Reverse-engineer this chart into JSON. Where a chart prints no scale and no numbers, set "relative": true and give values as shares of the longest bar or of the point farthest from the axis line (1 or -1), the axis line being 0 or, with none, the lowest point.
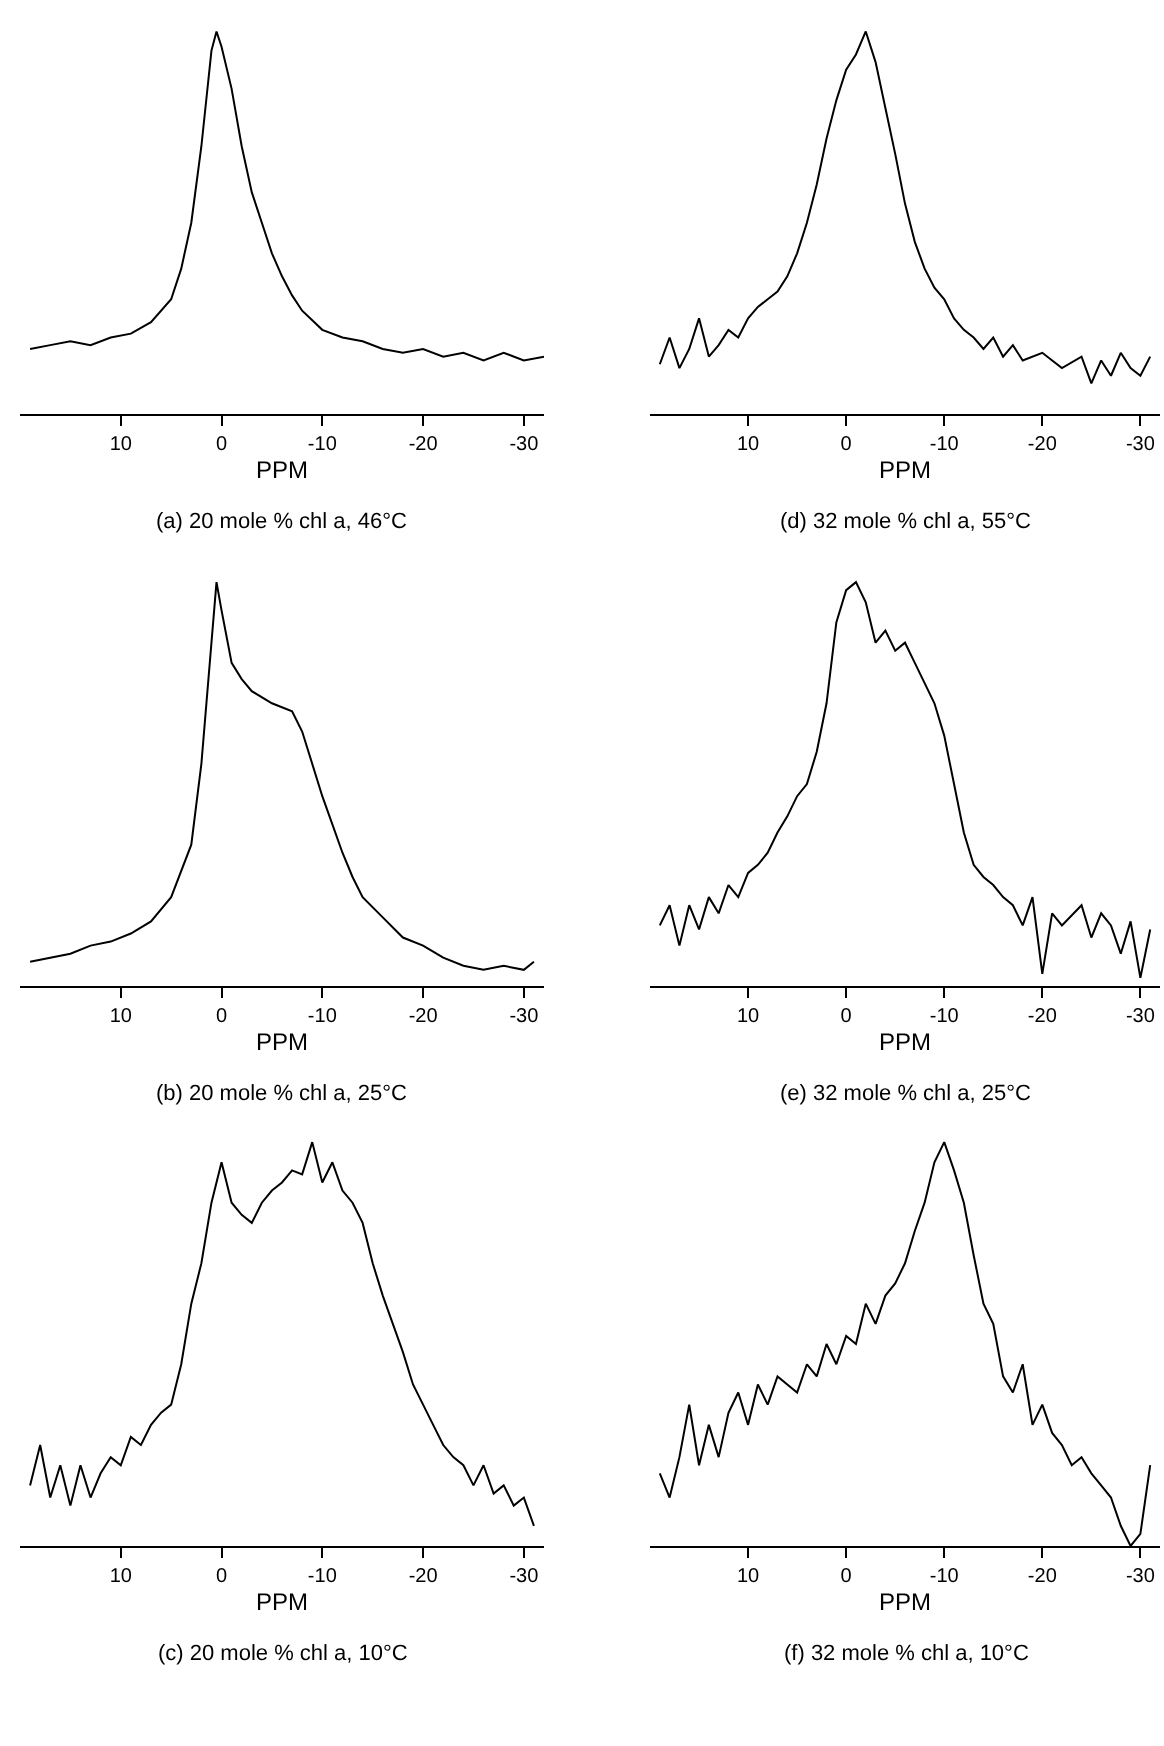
{
  "chart_data": [
    {
      "type": "line",
      "relative": true,
      "title": "(a) 20 mole % chl a, 46°C",
      "xlabel": "PPM",
      "xlim": [
        20,
        -32
      ],
      "xticks": [
        10,
        0,
        -10,
        -20,
        -30
      ],
      "x": [
        19,
        17,
        15,
        13,
        11,
        9,
        7,
        5,
        4,
        3,
        2,
        1,
        0.5,
        0,
        -1,
        -2,
        -3,
        -4,
        -5,
        -6,
        -7,
        -8,
        -10,
        -12,
        -14,
        -16,
        -18,
        -20,
        -22,
        -24,
        -26,
        -28,
        -30,
        -32
      ],
      "series": [
        {
          "color": "#000000",
          "values": [
            0.17,
            0.18,
            0.19,
            0.18,
            0.2,
            0.21,
            0.24,
            0.3,
            0.38,
            0.5,
            0.7,
            0.95,
            1.0,
            0.96,
            0.85,
            0.7,
            0.58,
            0.5,
            0.42,
            0.36,
            0.31,
            0.27,
            0.22,
            0.2,
            0.19,
            0.17,
            0.16,
            0.17,
            0.15,
            0.16,
            0.14,
            0.16,
            0.14,
            0.15
          ]
        }
      ]
    },
    {
      "type": "line",
      "relative": true,
      "title": "(d) 32 mole % chl a, 55°C",
      "xlabel": "PPM",
      "xlim": [
        20,
        -32
      ],
      "xticks": [
        10,
        0,
        -10,
        -20,
        -30
      ],
      "x": [
        19,
        18,
        17,
        16,
        15,
        14,
        13,
        12,
        11,
        10,
        9,
        8,
        7,
        6,
        5,
        4,
        3,
        2,
        1,
        0,
        -1,
        -2,
        -3,
        -4,
        -5,
        -6,
        -7,
        -8,
        -9,
        -10,
        -11,
        -12,
        -13,
        -14,
        -15,
        -16,
        -17,
        -18,
        -20,
        -22,
        -24,
        -25,
        -26,
        -27,
        -28,
        -29,
        -30,
        -31
      ],
      "series": [
        {
          "color": "#000000",
          "values": [
            0.13,
            0.2,
            0.12,
            0.17,
            0.25,
            0.15,
            0.18,
            0.22,
            0.2,
            0.25,
            0.28,
            0.3,
            0.32,
            0.36,
            0.42,
            0.5,
            0.6,
            0.72,
            0.82,
            0.9,
            0.94,
            1.0,
            0.92,
            0.8,
            0.68,
            0.55,
            0.45,
            0.38,
            0.33,
            0.3,
            0.25,
            0.22,
            0.2,
            0.17,
            0.2,
            0.15,
            0.18,
            0.14,
            0.16,
            0.12,
            0.15,
            0.08,
            0.14,
            0.1,
            0.16,
            0.12,
            0.1,
            0.15
          ]
        }
      ]
    },
    {
      "type": "line",
      "relative": true,
      "title": "(b) 20 mole % chl a, 25°C",
      "xlabel": "PPM",
      "xlim": [
        20,
        -32
      ],
      "xticks": [
        10,
        0,
        -10,
        -20,
        -30
      ],
      "x": [
        19,
        17,
        15,
        13,
        11,
        9,
        7,
        5,
        3,
        2,
        1,
        0.5,
        0,
        -1,
        -2,
        -3,
        -5,
        -7,
        -8,
        -9,
        -10,
        -11,
        -12,
        -13,
        -14,
        -16,
        -18,
        -20,
        -22,
        -24,
        -26,
        -28,
        -30,
        -31
      ],
      "series": [
        {
          "color": "#000000",
          "values": [
            0.06,
            0.07,
            0.08,
            0.1,
            0.11,
            0.13,
            0.16,
            0.22,
            0.35,
            0.55,
            0.85,
            1.0,
            0.93,
            0.8,
            0.76,
            0.73,
            0.7,
            0.68,
            0.63,
            0.55,
            0.47,
            0.4,
            0.33,
            0.27,
            0.22,
            0.17,
            0.12,
            0.1,
            0.07,
            0.05,
            0.04,
            0.05,
            0.04,
            0.06
          ]
        }
      ]
    },
    {
      "type": "line",
      "relative": true,
      "title": "(e) 32 mole % chl a, 25°C",
      "xlabel": "PPM",
      "xlim": [
        20,
        -32
      ],
      "xticks": [
        10,
        0,
        -10,
        -20,
        -30
      ],
      "x": [
        19,
        18,
        17,
        16,
        15,
        14,
        13,
        12,
        11,
        10,
        9,
        8,
        7,
        6,
        5,
        4,
        3,
        2,
        1,
        0,
        -1,
        -2,
        -3,
        -4,
        -5,
        -6,
        -7,
        -8,
        -9,
        -10,
        -11,
        -12,
        -13,
        -14,
        -15,
        -16,
        -17,
        -18,
        -19,
        -20,
        -21,
        -22,
        -24,
        -25,
        -26,
        -27,
        -28,
        -29,
        -30,
        -31
      ],
      "series": [
        {
          "color": "#000000",
          "values": [
            0.15,
            0.2,
            0.1,
            0.2,
            0.14,
            0.22,
            0.18,
            0.25,
            0.22,
            0.28,
            0.3,
            0.33,
            0.38,
            0.42,
            0.47,
            0.5,
            0.58,
            0.7,
            0.9,
            0.98,
            1.0,
            0.95,
            0.85,
            0.88,
            0.83,
            0.85,
            0.8,
            0.75,
            0.7,
            0.62,
            0.5,
            0.38,
            0.3,
            0.27,
            0.25,
            0.22,
            0.2,
            0.15,
            0.22,
            0.03,
            0.18,
            0.15,
            0.2,
            0.12,
            0.18,
            0.15,
            0.08,
            0.16,
            0.02,
            0.14
          ]
        }
      ]
    },
    {
      "type": "line",
      "relative": true,
      "title": "(c) 20 mole % chl a, 10°C",
      "xlabel": "PPM",
      "xlim": [
        20,
        -32
      ],
      "xticks": [
        10,
        0,
        -10,
        -20,
        -30
      ],
      "x": [
        19,
        18,
        17,
        16,
        15,
        14,
        13,
        12,
        11,
        10,
        9,
        8,
        7,
        6,
        5,
        4,
        3,
        2,
        1,
        0,
        -1,
        -2,
        -3,
        -4,
        -5,
        -6,
        -7,
        -8,
        -9,
        -10,
        -11,
        -12,
        -13,
        -14,
        -15,
        -16,
        -17,
        -18,
        -19,
        -20,
        -21,
        -22,
        -23,
        -24,
        -25,
        -26,
        -27,
        -28,
        -29,
        -30,
        -31
      ],
      "series": [
        {
          "color": "#000000",
          "values": [
            0.15,
            0.25,
            0.12,
            0.2,
            0.1,
            0.2,
            0.12,
            0.18,
            0.22,
            0.2,
            0.27,
            0.25,
            0.3,
            0.33,
            0.35,
            0.45,
            0.6,
            0.7,
            0.85,
            0.95,
            0.85,
            0.82,
            0.8,
            0.85,
            0.88,
            0.9,
            0.93,
            0.92,
            1.0,
            0.9,
            0.95,
            0.88,
            0.85,
            0.8,
            0.7,
            0.62,
            0.55,
            0.48,
            0.4,
            0.35,
            0.3,
            0.25,
            0.22,
            0.2,
            0.15,
            0.2,
            0.13,
            0.15,
            0.1,
            0.12,
            0.05
          ]
        }
      ]
    },
    {
      "type": "line",
      "relative": true,
      "title": "(f) 32 mole % chl a, 10°C",
      "xlabel": "PPM",
      "xlim": [
        20,
        -32
      ],
      "xticks": [
        10,
        0,
        -10,
        -20,
        -30
      ],
      "x": [
        19,
        18,
        17,
        16,
        15,
        14,
        13,
        12,
        11,
        10,
        9,
        8,
        7,
        6,
        5,
        4,
        3,
        2,
        1,
        0,
        -1,
        -2,
        -3,
        -4,
        -5,
        -6,
        -7,
        -8,
        -9,
        -10,
        -11,
        -12,
        -13,
        -14,
        -15,
        -16,
        -17,
        -18,
        -19,
        -20,
        -21,
        -22,
        -23,
        -24,
        -25,
        -26,
        -27,
        -28,
        -29,
        -30,
        -31
      ],
      "series": [
        {
          "color": "#000000",
          "values": [
            0.18,
            0.12,
            0.22,
            0.35,
            0.2,
            0.3,
            0.22,
            0.33,
            0.38,
            0.3,
            0.4,
            0.35,
            0.42,
            0.4,
            0.38,
            0.45,
            0.42,
            0.5,
            0.45,
            0.52,
            0.5,
            0.6,
            0.55,
            0.62,
            0.65,
            0.7,
            0.78,
            0.85,
            0.95,
            1.0,
            0.93,
            0.85,
            0.72,
            0.6,
            0.55,
            0.42,
            0.38,
            0.45,
            0.3,
            0.35,
            0.28,
            0.25,
            0.2,
            0.22,
            0.18,
            0.15,
            0.12,
            0.05,
            0.0,
            0.03,
            0.2
          ]
        }
      ]
    }
  ]
}
